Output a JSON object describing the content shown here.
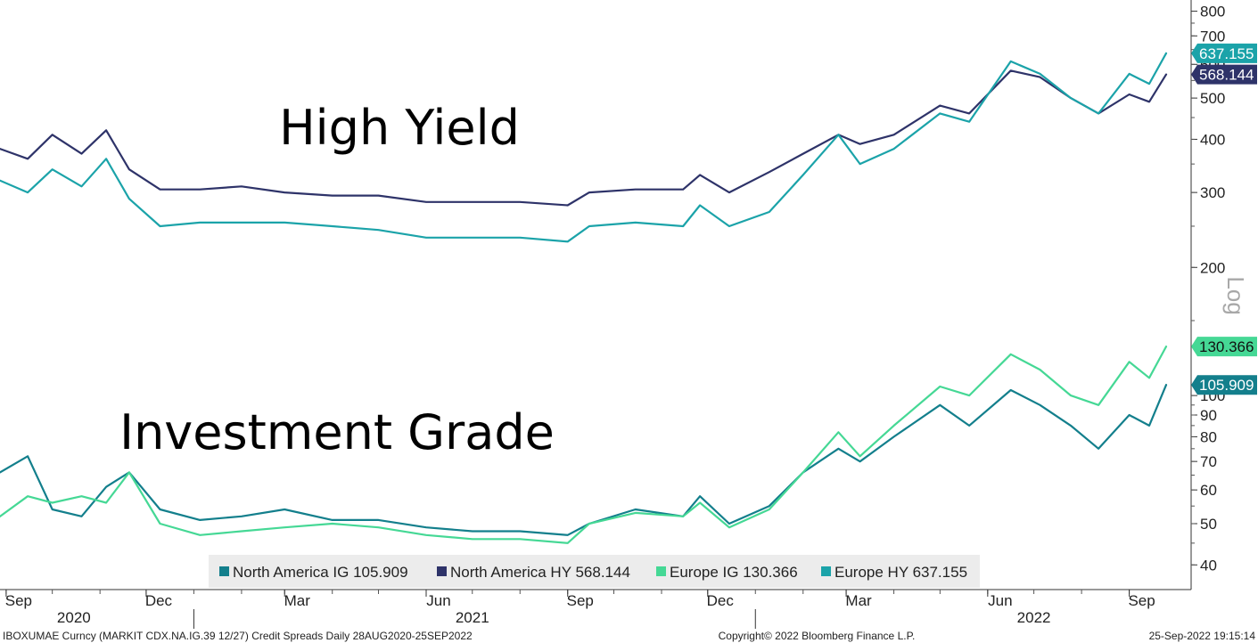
{
  "chart_data": {
    "type": "line",
    "y_scale": "log",
    "scale_label": "Log",
    "ylim": [
      35,
      850
    ],
    "y_ticks": [
      800,
      700,
      600,
      500,
      400,
      300,
      200,
      100,
      90,
      80,
      70,
      60,
      50,
      40
    ],
    "y_tick_labels": [
      "800",
      "700",
      "600",
      "500",
      "400",
      "300",
      "200",
      "100",
      "90",
      "80",
      "70",
      "60",
      "50",
      "40"
    ],
    "x_range": [
      "2020-08-28",
      "2022-09-25"
    ],
    "x_ticks": [
      "Sep",
      "Dec",
      "Mar",
      "Jun",
      "Sep",
      "Dec",
      "Mar",
      "Jun",
      "Sep"
    ],
    "x_tick_dates": [
      "2020-09-01",
      "2020-12-01",
      "2021-03-01",
      "2021-06-01",
      "2021-09-01",
      "2021-12-01",
      "2022-03-01",
      "2022-06-01",
      "2022-09-01"
    ],
    "x_years": [
      "2020",
      "2021",
      "2022"
    ],
    "x_year_dates": [
      "2020-10-15",
      "2021-07-01",
      "2022-07-01"
    ],
    "annotations": [
      "High Yield",
      "Investment Grade"
    ],
    "grid": false,
    "legend": "bottom",
    "series": [
      {
        "name": "North America IG",
        "legend_label": "North America IG 105.909",
        "color": "#137f8c",
        "last_value": "105.909",
        "x": [
          "2020-08-28",
          "2020-09-15",
          "2020-10-01",
          "2020-10-20",
          "2020-11-05",
          "2020-11-20",
          "2020-12-10",
          "2021-01-05",
          "2021-02-01",
          "2021-03-01",
          "2021-04-01",
          "2021-05-01",
          "2021-06-01",
          "2021-07-01",
          "2021-08-01",
          "2021-09-01",
          "2021-09-15",
          "2021-10-15",
          "2021-11-15",
          "2021-11-26",
          "2021-12-15",
          "2022-01-10",
          "2022-02-01",
          "2022-02-24",
          "2022-03-10",
          "2022-04-01",
          "2022-05-01",
          "2022-05-20",
          "2022-06-16",
          "2022-07-05",
          "2022-07-25",
          "2022-08-12",
          "2022-09-01",
          "2022-09-14",
          "2022-09-25"
        ],
        "values": [
          66,
          72,
          54,
          52,
          61,
          66,
          54,
          51,
          52,
          54,
          51,
          51,
          49,
          48,
          48,
          47,
          50,
          54,
          52,
          58,
          50,
          55,
          66,
          75,
          70,
          80,
          95,
          85,
          103,
          95,
          85,
          75,
          90,
          85,
          105.909
        ]
      },
      {
        "name": "North America HY",
        "legend_label": "North America HY 568.144",
        "color": "#2e3369",
        "last_value": "568.144",
        "x": [
          "2020-08-28",
          "2020-09-15",
          "2020-10-01",
          "2020-10-20",
          "2020-11-05",
          "2020-11-20",
          "2020-12-10",
          "2021-01-05",
          "2021-02-01",
          "2021-03-01",
          "2021-04-01",
          "2021-05-01",
          "2021-06-01",
          "2021-07-01",
          "2021-08-01",
          "2021-09-01",
          "2021-09-15",
          "2021-10-15",
          "2021-11-15",
          "2021-11-26",
          "2021-12-15",
          "2022-01-10",
          "2022-02-01",
          "2022-02-24",
          "2022-03-10",
          "2022-04-01",
          "2022-05-01",
          "2022-05-20",
          "2022-06-16",
          "2022-07-05",
          "2022-07-25",
          "2022-08-12",
          "2022-09-01",
          "2022-09-14",
          "2022-09-25"
        ],
        "values": [
          380,
          360,
          410,
          370,
          420,
          340,
          305,
          305,
          310,
          300,
          295,
          295,
          285,
          285,
          285,
          280,
          300,
          305,
          305,
          330,
          300,
          335,
          370,
          410,
          390,
          410,
          480,
          460,
          580,
          560,
          500,
          460,
          510,
          490,
          568.144
        ]
      },
      {
        "name": "Europe IG",
        "legend_label": "Europe IG 130.366",
        "color": "#45d895",
        "last_value": "130.366",
        "x": [
          "2020-08-28",
          "2020-09-15",
          "2020-10-01",
          "2020-10-20",
          "2020-11-05",
          "2020-11-20",
          "2020-12-10",
          "2021-01-05",
          "2021-02-01",
          "2021-03-01",
          "2021-04-01",
          "2021-05-01",
          "2021-06-01",
          "2021-07-01",
          "2021-08-01",
          "2021-09-01",
          "2021-09-15",
          "2021-10-15",
          "2021-11-15",
          "2021-11-26",
          "2021-12-15",
          "2022-01-10",
          "2022-02-01",
          "2022-02-24",
          "2022-03-10",
          "2022-04-01",
          "2022-05-01",
          "2022-05-20",
          "2022-06-16",
          "2022-07-05",
          "2022-07-25",
          "2022-08-12",
          "2022-09-01",
          "2022-09-14",
          "2022-09-25"
        ],
        "values": [
          52,
          58,
          56,
          58,
          56,
          66,
          50,
          47,
          48,
          49,
          50,
          49,
          47,
          46,
          46,
          45,
          50,
          53,
          52,
          56,
          49,
          54,
          66,
          82,
          72,
          85,
          105,
          100,
          125,
          115,
          100,
          95,
          120,
          110,
          130.366
        ]
      },
      {
        "name": "Europe HY",
        "legend_label": "Europe HY 637.155",
        "color": "#1ba3a9",
        "last_value": "637.155",
        "x": [
          "2020-08-28",
          "2020-09-15",
          "2020-10-01",
          "2020-10-20",
          "2020-11-05",
          "2020-11-20",
          "2020-12-10",
          "2021-01-05",
          "2021-02-01",
          "2021-03-01",
          "2021-04-01",
          "2021-05-01",
          "2021-06-01",
          "2021-07-01",
          "2021-08-01",
          "2021-09-01",
          "2021-09-15",
          "2021-10-15",
          "2021-11-15",
          "2021-11-26",
          "2021-12-15",
          "2022-01-10",
          "2022-02-01",
          "2022-02-24",
          "2022-03-10",
          "2022-04-01",
          "2022-05-01",
          "2022-05-20",
          "2022-06-16",
          "2022-07-05",
          "2022-07-25",
          "2022-08-12",
          "2022-09-01",
          "2022-09-14",
          "2022-09-25"
        ],
        "values": [
          320,
          300,
          340,
          310,
          360,
          290,
          250,
          255,
          255,
          255,
          250,
          245,
          235,
          235,
          235,
          230,
          250,
          255,
          250,
          280,
          250,
          270,
          330,
          410,
          350,
          380,
          460,
          440,
          610,
          570,
          500,
          460,
          570,
          540,
          637.155
        ]
      }
    ]
  },
  "footer": {
    "left": "IBOXUMAE Curncy (MARKIT CDX.NA.IG.39 12/27) Credit Spreads  Daily 28AUG2020-25SEP2022",
    "center": "Copyright© 2022 Bloomberg Finance L.P.",
    "right": "25-Sep-2022 19:15:14"
  }
}
